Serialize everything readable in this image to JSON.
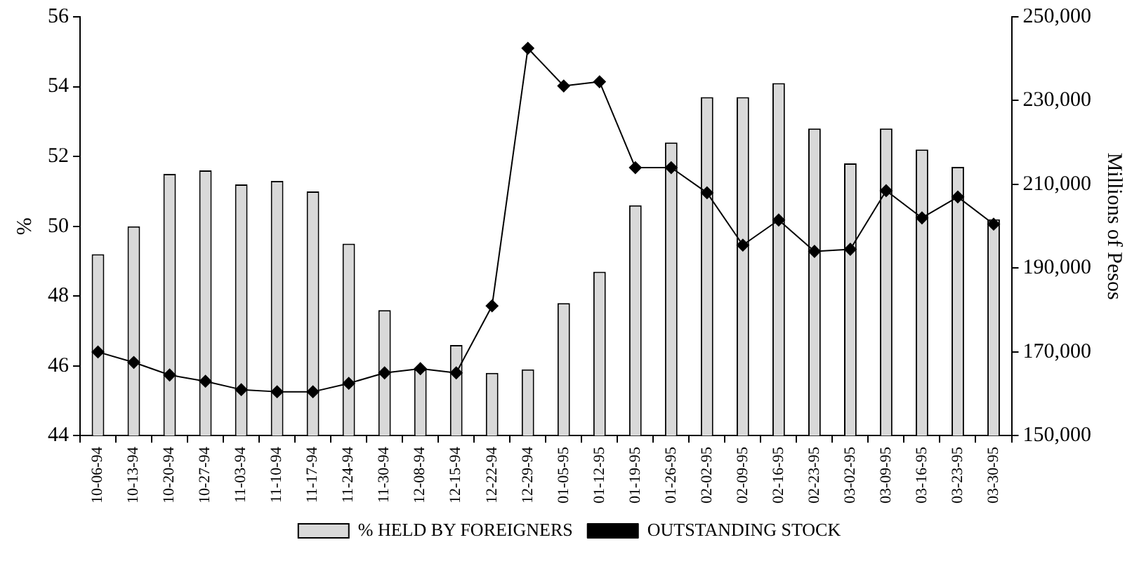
{
  "chart_data": {
    "type": "bar",
    "ylabel": "%",
    "y2label": "Millions of Pesos",
    "categories": [
      "10-06-94",
      "10-13-94",
      "10-20-94",
      "10-27-94",
      "11-03-94",
      "11-10-94",
      "11-17-94",
      "11-24-94",
      "11-30-94",
      "12-08-94",
      "12-15-94",
      "12-22-94",
      "12-29-94",
      "01-05-95",
      "01-12-95",
      "01-19-95",
      "01-26-95",
      "02-02-95",
      "02-09-95",
      "02-16-95",
      "02-23-95",
      "03-02-95",
      "03-09-95",
      "03-16-95",
      "03-23-95",
      "03-30-95"
    ],
    "series": [
      {
        "name": "% HELD BY FOREIGNERS",
        "color": "#d9d9d9",
        "values": [
          49.2,
          50.0,
          51.5,
          51.6,
          51.2,
          51.3,
          51.0,
          49.5,
          47.6,
          45.9,
          46.6,
          45.8,
          45.9,
          47.8,
          48.7,
          50.6,
          52.4,
          53.7,
          53.7,
          54.1,
          52.8,
          51.8,
          52.8,
          52.2,
          51.7,
          50.2
        ]
      },
      {
        "name": "OUTSTANDING STOCK",
        "type": "line",
        "axis": "y2",
        "color": "#000000",
        "values": [
          170000,
          167500,
          164500,
          163000,
          161000,
          160500,
          160500,
          162500,
          165000,
          166000,
          165000,
          181000,
          242500,
          233500,
          234500,
          214000,
          214000,
          208000,
          195500,
          201500,
          194000,
          194500,
          208500,
          202000,
          207000,
          200500
        ]
      }
    ],
    "ylim": [
      44,
      56
    ],
    "yticks": [
      44,
      46,
      48,
      50,
      52,
      54,
      56
    ],
    "y2lim": [
      150000,
      250000
    ],
    "y2ticks": [
      {
        "value": 150000,
        "label": "150,000"
      },
      {
        "value": 170000,
        "label": "170,000"
      },
      {
        "value": 190000,
        "label": "190,000"
      },
      {
        "value": 210000,
        "label": "210,000"
      },
      {
        "value": 230000,
        "label": "230,000"
      },
      {
        "value": 250000,
        "label": "250,000"
      }
    ],
    "grid": false,
    "legend": "bottom",
    "marker": "diamond",
    "line_style": "solid"
  }
}
